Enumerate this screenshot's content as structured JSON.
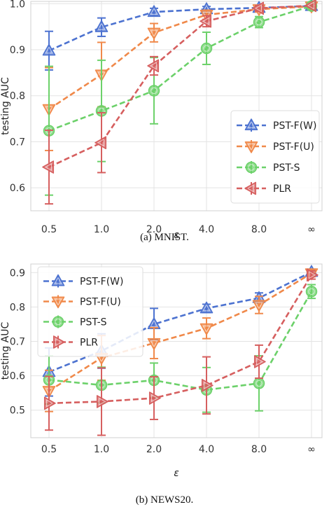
{
  "colors": {
    "PST-F(W)": "#4c72d0",
    "PST-F(U)": "#f0894a",
    "PST-S": "#6cd16a",
    "PLR": "#d65f5f",
    "plot_bg": "#ffffff",
    "grid": "#e3e3e3",
    "frame": "#d0d0d0"
  },
  "chart_data": [
    {
      "type": "line",
      "caption": "(a)  MNIST.",
      "xlabel": "ε",
      "ylabel": "testing AUC",
      "categories": [
        "0.5",
        "1.0",
        "2.0",
        "4.0",
        "8.0",
        "∞"
      ],
      "ylim": [
        0.55,
        1.005
      ],
      "yticks": [
        "0.6",
        "0.7",
        "0.8",
        "0.9",
        "1.0"
      ],
      "grid": true,
      "legend_position": "lower-right",
      "series": [
        {
          "name": "PST-F(W)",
          "marker": "triangle-up",
          "values": [
            0.898,
            0.949,
            0.982,
            0.988,
            0.991,
            0.995
          ],
          "errors": [
            0.042,
            0.02,
            0.008,
            0.006,
            0.005,
            0.003
          ]
        },
        {
          "name": "PST-F(U)",
          "marker": "triangle-down",
          "values": [
            0.771,
            0.846,
            0.937,
            0.976,
            0.988,
            0.994
          ],
          "errors": [
            0.09,
            0.07,
            0.02,
            0.01,
            0.006,
            0.003
          ]
        },
        {
          "name": "PST-S",
          "marker": "circle",
          "values": [
            0.724,
            0.767,
            0.811,
            0.903,
            0.96,
            0.995
          ],
          "errors": [
            0.14,
            0.11,
            0.072,
            0.035,
            0.012,
            0.003
          ]
        },
        {
          "name": "PLR",
          "marker": "triangle-left",
          "values": [
            0.645,
            0.698,
            0.865,
            0.962,
            0.99,
            0.996
          ],
          "errors": [
            0.08,
            0.065,
            0.02,
            0.012,
            0.006,
            0.003
          ]
        }
      ]
    },
    {
      "type": "line",
      "caption": "(b)  NEWS20.",
      "xlabel": "ε",
      "ylabel": "testing AUC",
      "categories": [
        "0.5",
        "1.0",
        "2.0",
        "4.0",
        "8.0",
        "∞"
      ],
      "ylim": [
        0.42,
        0.925
      ],
      "yticks": [
        "0.5",
        "0.6",
        "0.7",
        "0.8",
        "0.9"
      ],
      "grid": true,
      "legend_position": "upper-left",
      "series": [
        {
          "name": "PST-F(W)",
          "marker": "triangle-up",
          "values": [
            0.611,
            0.672,
            0.75,
            0.796,
            0.826,
            0.902
          ],
          "errors": [
            0.07,
            0.05,
            0.046,
            0.012,
            0.015,
            0.008
          ]
        },
        {
          "name": "PST-F(U)",
          "marker": "triangle-down",
          "values": [
            0.556,
            0.652,
            0.695,
            0.738,
            0.806,
            0.898
          ],
          "errors": [
            0.06,
            0.065,
            0.045,
            0.03,
            0.025,
            0.01
          ]
        },
        {
          "name": "PST-S",
          "marker": "circle",
          "values": [
            0.588,
            0.573,
            0.587,
            0.559,
            0.578,
            0.845
          ],
          "errors": [
            0.07,
            0.052,
            0.05,
            0.065,
            0.08,
            0.02
          ]
        },
        {
          "name": "PLR",
          "marker": "triangle-right",
          "values": [
            0.52,
            0.525,
            0.535,
            0.572,
            0.641,
            0.893
          ],
          "errors": [
            0.078,
            0.098,
            0.062,
            0.083,
            0.048,
            0.012
          ]
        }
      ]
    }
  ]
}
